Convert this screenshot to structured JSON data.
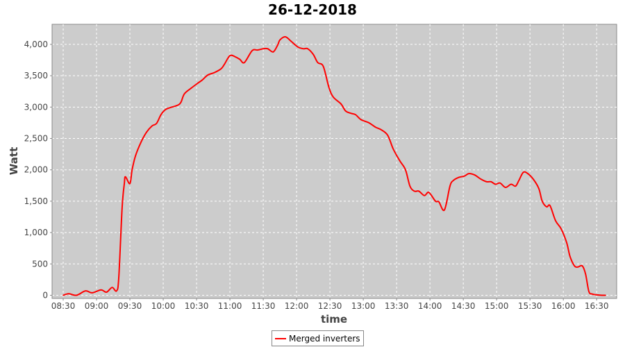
{
  "chart_data": {
    "type": "line",
    "title": "26-12-2018",
    "xlabel": "time",
    "ylabel": "Watt",
    "xlim": [
      "08:20",
      "16:48"
    ],
    "ylim": [
      -50,
      4320
    ],
    "x_ticks": [
      "08:30",
      "09:00",
      "09:30",
      "10:00",
      "10:30",
      "11:00",
      "11:30",
      "12:00",
      "12:30",
      "13:00",
      "13:30",
      "14:00",
      "14:30",
      "15:00",
      "15:30",
      "16:00",
      "16:30"
    ],
    "y_ticks": [
      0,
      500,
      1000,
      1500,
      2000,
      2500,
      3000,
      3500,
      4000
    ],
    "y_tick_labels": [
      "0",
      "500",
      "1,000",
      "1,500",
      "2,000",
      "2,500",
      "3,000",
      "3,500",
      "4,000"
    ],
    "grid": true,
    "legend_placement": "bottom",
    "colors": {
      "series": "#ff0000",
      "plot_background": "#cccccc",
      "grid": "#ffffff"
    },
    "series": [
      {
        "name": "Merged inverters",
        "x": [
          "08:30",
          "08:35",
          "08:42",
          "08:50",
          "08:56",
          "09:04",
          "09:09",
          "09:14",
          "09:18",
          "09:20",
          "09:23",
          "09:25",
          "09:26",
          "09:30",
          "09:32",
          "09:35",
          "09:40",
          "09:45",
          "09:50",
          "09:54",
          "09:58",
          "10:02",
          "10:06",
          "10:13",
          "10:16",
          "10:19",
          "10:25",
          "10:31",
          "10:35",
          "10:40",
          "10:46",
          "10:52",
          "10:55",
          "11:00",
          "11:05",
          "11:09",
          "11:13",
          "11:20",
          "11:25",
          "11:30",
          "11:34",
          "11:39",
          "11:43",
          "11:45",
          "11:50",
          "11:55",
          "12:01",
          "12:06",
          "12:10",
          "12:15",
          "12:19",
          "12:24",
          "12:29",
          "12:33",
          "12:40",
          "12:44",
          "12:49",
          "12:53",
          "12:58",
          "13:05",
          "13:11",
          "13:16",
          "13:22",
          "13:27",
          "13:33",
          "13:38",
          "13:42",
          "13:46",
          "13:50",
          "13:55",
          "13:59",
          "14:05",
          "14:08",
          "14:13",
          "14:18",
          "14:21",
          "14:26",
          "14:31",
          "14:35",
          "14:40",
          "14:46",
          "14:51",
          "14:55",
          "14:59",
          "15:03",
          "15:08",
          "15:13",
          "15:17",
          "15:20",
          "15:24",
          "15:28",
          "15:33",
          "15:38",
          "15:41",
          "15:45",
          "15:48",
          "15:53",
          "15:58",
          "16:03",
          "16:06",
          "16:10",
          "16:13",
          "16:17",
          "16:20",
          "16:23",
          "16:26",
          "16:31",
          "16:35",
          "16:38"
        ],
        "values": [
          0,
          25,
          0,
          70,
          40,
          85,
          50,
          125,
          70,
          280,
          1390,
          1780,
          1890,
          1780,
          2000,
          2220,
          2440,
          2600,
          2700,
          2740,
          2880,
          2960,
          2990,
          3030,
          3080,
          3210,
          3300,
          3380,
          3430,
          3510,
          3550,
          3610,
          3680,
          3820,
          3800,
          3760,
          3710,
          3900,
          3910,
          3930,
          3930,
          3880,
          3990,
          4070,
          4120,
          4050,
          3960,
          3930,
          3930,
          3840,
          3710,
          3650,
          3320,
          3160,
          3050,
          2940,
          2900,
          2880,
          2800,
          2750,
          2680,
          2640,
          2550,
          2330,
          2140,
          2000,
          1740,
          1660,
          1660,
          1590,
          1640,
          1500,
          1490,
          1360,
          1740,
          1830,
          1880,
          1900,
          1940,
          1920,
          1850,
          1810,
          1810,
          1770,
          1790,
          1720,
          1770,
          1740,
          1830,
          1960,
          1940,
          1850,
          1700,
          1500,
          1410,
          1430,
          1190,
          1060,
          840,
          620,
          470,
          450,
          470,
          340,
          60,
          20,
          5,
          0,
          0
        ]
      }
    ]
  }
}
